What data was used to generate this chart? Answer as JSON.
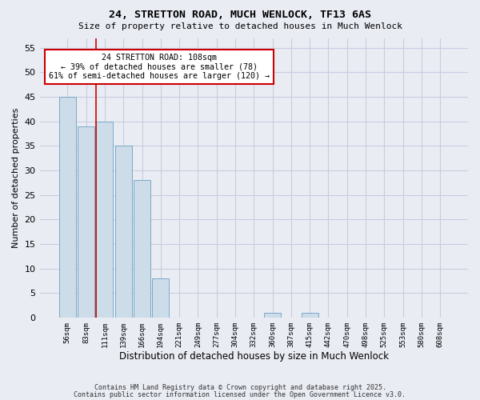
{
  "title1": "24, STRETTON ROAD, MUCH WENLOCK, TF13 6AS",
  "title2": "Size of property relative to detached houses in Much Wenlock",
  "xlabel": "Distribution of detached houses by size in Much Wenlock",
  "ylabel": "Number of detached properties",
  "categories": [
    "56sqm",
    "83sqm",
    "111sqm",
    "139sqm",
    "166sqm",
    "194sqm",
    "221sqm",
    "249sqm",
    "277sqm",
    "304sqm",
    "332sqm",
    "360sqm",
    "387sqm",
    "415sqm",
    "442sqm",
    "470sqm",
    "498sqm",
    "525sqm",
    "553sqm",
    "580sqm",
    "608sqm"
  ],
  "values": [
    45,
    39,
    40,
    35,
    28,
    8,
    0,
    0,
    0,
    0,
    0,
    1,
    0,
    1,
    0,
    0,
    0,
    0,
    0,
    0,
    0
  ],
  "bar_color": "#ccdce8",
  "bar_edge_color": "#7aaac8",
  "grid_color": "#c8cce0",
  "background_color": "#eaecf4",
  "vline_color": "#cc0000",
  "annotation_text": "24 STRETTON ROAD: 108sqm\n← 39% of detached houses are smaller (78)\n61% of semi-detached houses are larger (120) →",
  "annotation_box_color": "#ffffff",
  "annotation_border_color": "#cc0000",
  "ylim": [
    0,
    57
  ],
  "yticks": [
    0,
    5,
    10,
    15,
    20,
    25,
    30,
    35,
    40,
    45,
    50,
    55
  ],
  "footer1": "Contains HM Land Registry data © Crown copyright and database right 2025.",
  "footer2": "Contains public sector information licensed under the Open Government Licence v3.0."
}
